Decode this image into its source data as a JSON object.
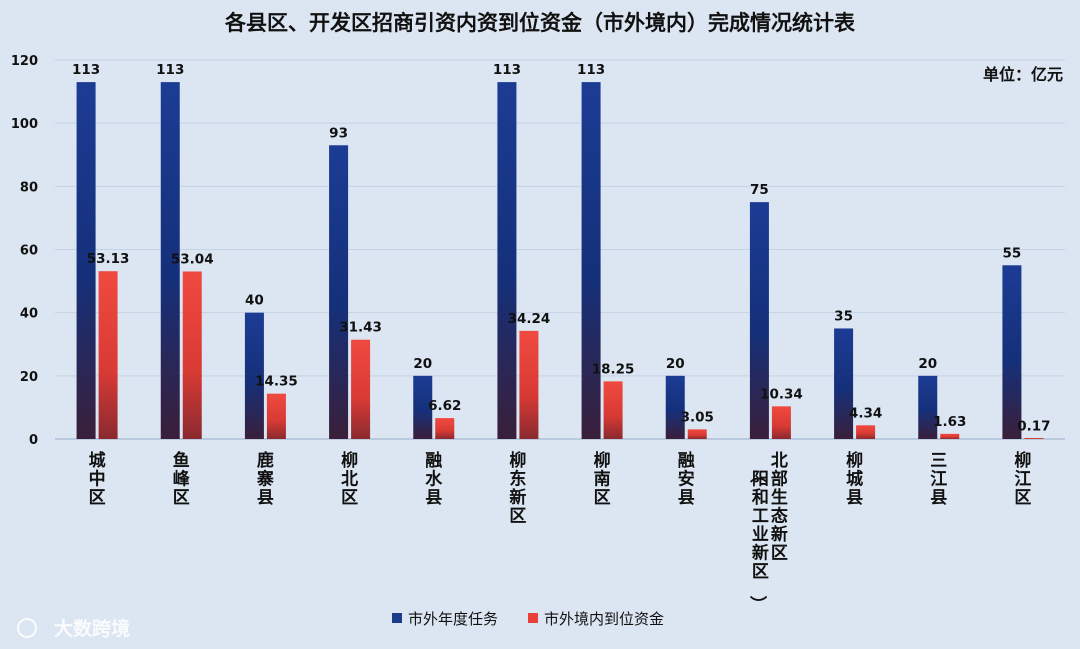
{
  "chart_data": {
    "type": "bar",
    "title": "各县区、开发区招商引资内资到位资金（市外境内）完成情况统计表",
    "unit_label": "单位：亿元",
    "categories": [
      "城中区",
      "鱼峰区",
      "鹿寨县",
      "柳北区",
      "融水县",
      "柳东新区",
      "柳南区",
      "融安县",
      "北部生态新区",
      "柳城县",
      "三江县",
      "柳江区"
    ],
    "category_notes": [
      "",
      "",
      "",
      "",
      "",
      "",
      "",
      "",
      "（阳和工业新区）",
      "",
      "",
      ""
    ],
    "series": [
      {
        "name": "市外年度任务",
        "color": "#1a3a8c",
        "values": [
          113,
          113,
          40,
          93,
          20,
          113,
          113,
          20,
          75,
          35,
          20,
          55
        ],
        "labels": [
          "113",
          "113",
          "40",
          "93",
          "20",
          "113",
          "113",
          "20",
          "75",
          "35",
          "20",
          "55"
        ]
      },
      {
        "name": "市外境内到位资金",
        "color": "#e8403a",
        "values": [
          53.13,
          53.04,
          14.35,
          31.43,
          6.62,
          34.24,
          18.25,
          3.05,
          10.34,
          4.34,
          1.63,
          0.17
        ],
        "labels": [
          "53.13",
          "53.04",
          "14.35",
          "31.43",
          "6.62",
          "34.24",
          "18.25",
          "3.05",
          "10.34",
          "4.34",
          "1.63",
          "0.17"
        ]
      }
    ],
    "ylim": [
      0,
      120
    ],
    "yticks": [
      0,
      20,
      40,
      60,
      80,
      100,
      120
    ],
    "grid": true,
    "legend_position": "bottom"
  },
  "watermark": "大数跨境"
}
